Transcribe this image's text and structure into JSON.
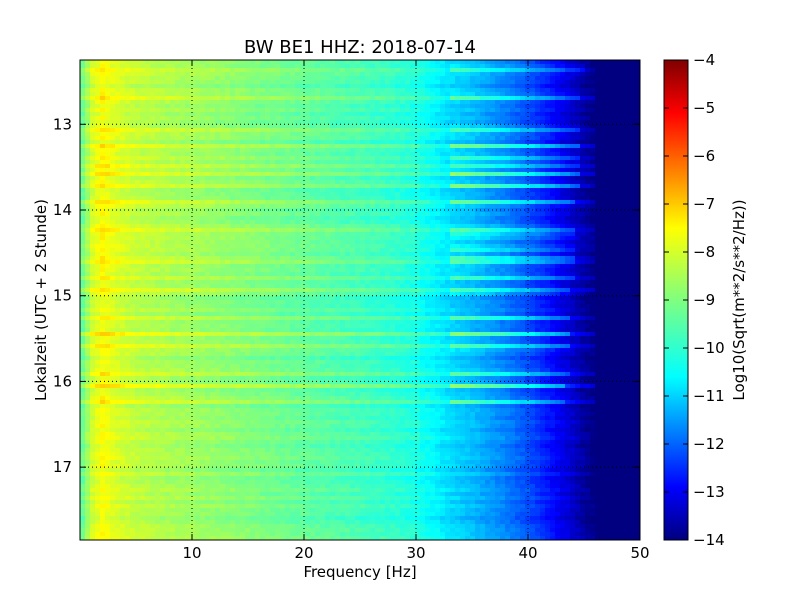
{
  "chart_data": {
    "type": "heatmap",
    "title": "BW BE1 HHZ: 2018-07-14",
    "xlabel": "Frequency [Hz]",
    "ylabel": "Lokalzeit (UTC + 2 Stunde)",
    "xlim": [
      0,
      50
    ],
    "ylim": [
      12.25,
      17.85
    ],
    "y_inverted": true,
    "x_ticks": [
      10,
      20,
      30,
      40,
      50
    ],
    "x_tick_labels": [
      "10",
      "20",
      "30",
      "40",
      "50"
    ],
    "y_ticks": [
      13,
      14,
      15,
      16,
      17
    ],
    "y_tick_labels": [
      "13",
      "14",
      "15",
      "16",
      "17"
    ],
    "grid": true,
    "colormap": "jet",
    "colorbar": {
      "label": "Log10(Sqrt(m**2/s**2/Hz))",
      "range": [
        -14,
        -4
      ],
      "ticks": [
        -4,
        -5,
        -6,
        -7,
        -8,
        -9,
        -10,
        -11,
        -12,
        -13,
        -14
      ],
      "tick_labels": [
        "−4",
        "−5",
        "−6",
        "−7",
        "−8",
        "−9",
        "−10",
        "−11",
        "−12",
        "−13",
        "−14"
      ]
    },
    "spectral_profile": {
      "frequency_hz": [
        0,
        1,
        2,
        3,
        5,
        8,
        10,
        15,
        20,
        25,
        28,
        30,
        33,
        35,
        38,
        40,
        42,
        44,
        45,
        46,
        50
      ],
      "log_amplitude": [
        -9.5,
        -8.3,
        -7.8,
        -8.1,
        -8.4,
        -8.6,
        -8.7,
        -9.0,
        -9.3,
        -9.6,
        -9.8,
        -10.0,
        -10.6,
        -10.9,
        -11.5,
        -12.0,
        -12.6,
        -13.3,
        -13.7,
        -14.0,
        -14.0
      ]
    },
    "noise_bands_hours": [
      12.35,
      12.68,
      13.05,
      13.25,
      13.38,
      13.47,
      13.58,
      13.72,
      13.9,
      14.22,
      14.3,
      14.45,
      14.55,
      14.62,
      14.78,
      14.95,
      15.25,
      15.45,
      15.6,
      15.9,
      16.05,
      16.25
    ]
  }
}
